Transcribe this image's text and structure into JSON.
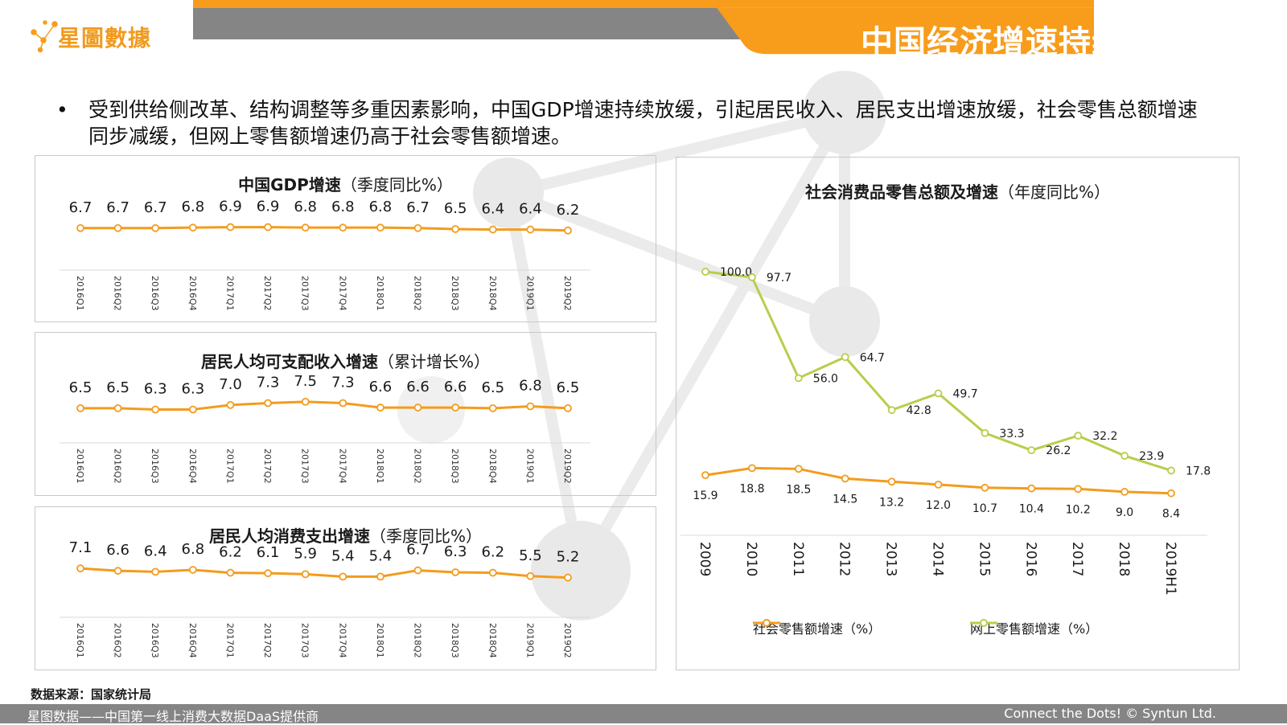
{
  "header": {
    "logo_text": "星圖數據",
    "title": "中国经济增速持续放缓",
    "bar_color": "#858585",
    "accent_color": "#f89c1c"
  },
  "bullet": {
    "marker": "•",
    "text": "受到供给侧改革、结构调整等多重因素影响，中国GDP增速持续放缓，引起居民收入、居民支出增速放缓，社会零售总额增速同步减缓，但网上零售额增速仍高于社会零售额增速。"
  },
  "charts": {
    "gdp": {
      "title_bold": "中国GDP增速",
      "title_normal": "（季度同比%）"
    },
    "income": {
      "title_bold": "居民人均可支配收入增速",
      "title_normal": "（累计增长%）"
    },
    "spend": {
      "title_bold": "居民人均消费支出增速",
      "title_normal": "（季度同比%）"
    },
    "retail": {
      "title_bold": "社会消费品零售总额及增速",
      "title_normal": "（年度同比%）",
      "legend_1": "社会零售额增速（%）",
      "legend_2": "网上零售额增速（%）"
    }
  },
  "chart_data": [
    {
      "type": "line",
      "title": "中国GDP增速（季度同比%）",
      "x": [
        "2016Q1",
        "2016Q2",
        "2016Q3",
        "2016Q4",
        "2017Q1",
        "2017Q2",
        "2017Q3",
        "2017Q4",
        "2018Q1",
        "2018Q2",
        "2018Q3",
        "2018Q4",
        "2019Q1",
        "2019Q2"
      ],
      "series": [
        {
          "values": [
            6.7,
            6.7,
            6.7,
            6.8,
            6.9,
            6.9,
            6.8,
            6.8,
            6.8,
            6.7,
            6.5,
            6.4,
            6.4,
            6.2
          ],
          "color": "#f39c1d"
        }
      ]
    },
    {
      "type": "line",
      "title": "居民人均可支配收入增速（累计增长%）",
      "x": [
        "2016Q1",
        "2016Q2",
        "2016Q3",
        "2016Q4",
        "2017Q1",
        "2017Q2",
        "2017Q3",
        "2017Q4",
        "2018Q1",
        "2018Q2",
        "2018Q3",
        "2018Q4",
        "2019Q1",
        "2019Q2"
      ],
      "series": [
        {
          "values": [
            6.5,
            6.5,
            6.3,
            6.3,
            7.0,
            7.3,
            7.5,
            7.3,
            6.6,
            6.6,
            6.6,
            6.5,
            6.8,
            6.5
          ],
          "color": "#f39c1d"
        }
      ]
    },
    {
      "type": "line",
      "title": "居民人均消费支出增速（季度同比%）",
      "x": [
        "2016Q1",
        "2016Q2",
        "2016Q3",
        "2016Q4",
        "2017Q1",
        "2017Q2",
        "2017Q3",
        "2017Q4",
        "2018Q1",
        "2018Q2",
        "2018Q3",
        "2018Q4",
        "2019Q1",
        "2019Q2"
      ],
      "series": [
        {
          "values": [
            7.1,
            6.6,
            6.4,
            6.8,
            6.2,
            6.1,
            5.9,
            5.4,
            5.4,
            6.7,
            6.3,
            6.2,
            5.5,
            5.2
          ],
          "color": "#f39c1d"
        }
      ]
    },
    {
      "type": "line",
      "title": "社会消费品零售总额及增速（年度同比%）",
      "x": [
        "2009",
        "2010",
        "2011",
        "2012",
        "2013",
        "2014",
        "2015",
        "2016",
        "2017",
        "2018",
        "2019H1"
      ],
      "series": [
        {
          "name": "社会零售额增速（%）",
          "values": [
            15.9,
            18.8,
            18.5,
            14.5,
            13.2,
            12.0,
            10.7,
            10.4,
            10.2,
            9.0,
            8.4
          ],
          "color": "#f39c1d"
        },
        {
          "name": "网上零售额增速（%）",
          "values": [
            100.0,
            97.7,
            56.0,
            64.7,
            42.8,
            49.7,
            33.3,
            26.2,
            32.2,
            23.9,
            17.8
          ],
          "color": "#b5cf4b"
        }
      ],
      "legend": "bottom"
    }
  ],
  "source_text": "数据来源：国家统计局",
  "footer": {
    "left": "星图数据——中国第一线上消费大数据DaaS提供商",
    "right": "Connect the Dots! © Syntun Ltd."
  }
}
